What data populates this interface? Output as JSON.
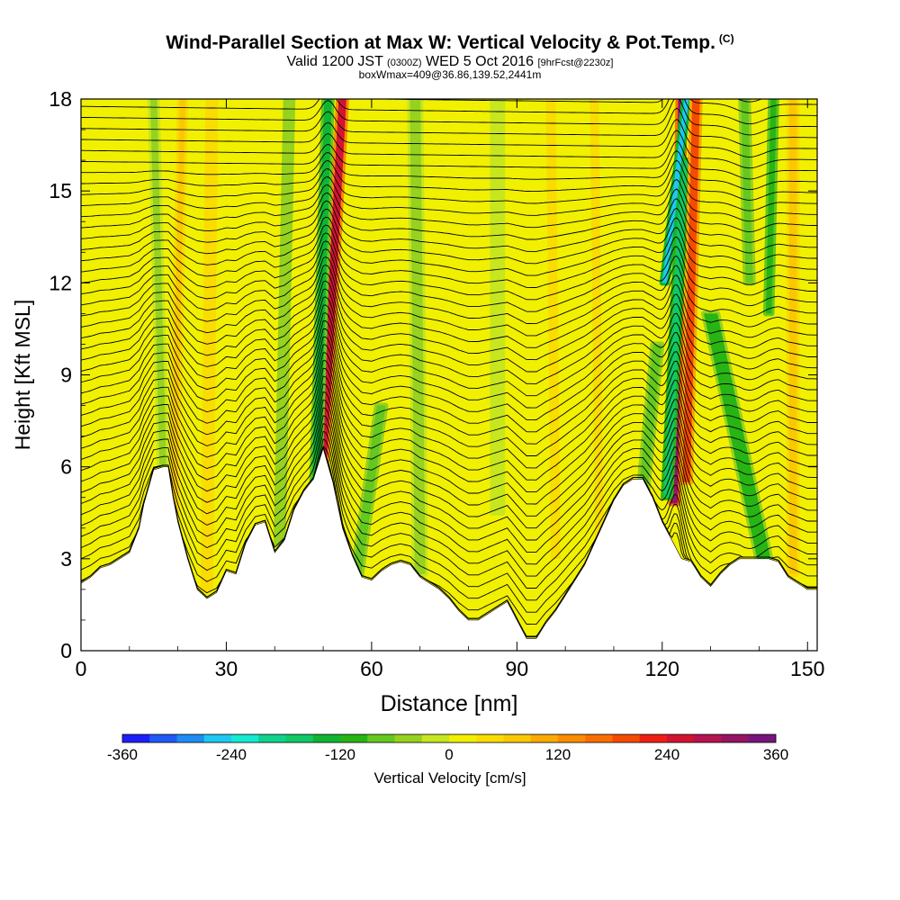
{
  "header": {
    "title": "Wind-Parallel Section at Max W: Vertical Velocity & Pot.Temp.",
    "copyright": "(C)",
    "subtitle_valid": "Valid 1200 JST",
    "subtitle_utc": "(0300Z)",
    "subtitle_date": "WED 5 Oct 2016",
    "subtitle_fcst": "[9hrFcst@2230z]",
    "subtitle_box": "boxWmax=409@36.86,139.52,2441m"
  },
  "chart_data": {
    "type": "heatmap",
    "xlabel": "Distance [nm]",
    "ylabel": "Height [Kft MSL]",
    "xlim": [
      0,
      152
    ],
    "ylim": [
      0,
      18
    ],
    "x_ticks": [
      "0",
      "30",
      "60",
      "90",
      "120",
      "150"
    ],
    "x_tick_values": [
      0,
      30,
      60,
      90,
      120,
      150
    ],
    "y_ticks": [
      "0",
      "3",
      "6",
      "9",
      "12",
      "15",
      "18"
    ],
    "y_tick_values": [
      0,
      3,
      6,
      9,
      12,
      15,
      18
    ],
    "terrain": {
      "x": [
        0,
        2,
        4,
        6,
        8,
        10,
        12,
        13,
        15,
        17,
        18,
        19,
        20,
        22,
        24,
        26,
        28,
        30,
        32,
        34,
        36,
        38,
        40,
        42,
        44,
        46,
        48,
        50,
        52,
        54,
        56,
        58,
        60,
        62,
        64,
        66,
        68,
        70,
        72,
        74,
        76,
        78,
        80,
        82,
        84,
        86,
        88,
        90,
        92,
        94,
        96,
        98,
        100,
        102,
        104,
        106,
        108,
        110,
        112,
        114,
        116,
        118,
        120,
        122,
        124,
        126,
        128,
        130,
        132,
        134,
        136,
        138,
        140,
        142,
        144,
        146,
        148,
        150,
        152
      ],
      "height": [
        2.2,
        2.4,
        2.7,
        2.8,
        3.0,
        3.2,
        4.0,
        4.8,
        5.9,
        6.0,
        6.0,
        5.0,
        4.2,
        3.0,
        2.0,
        1.7,
        1.9,
        2.6,
        2.5,
        3.5,
        4.1,
        4.2,
        3.2,
        3.6,
        4.6,
        5.2,
        5.6,
        6.6,
        5.5,
        4.0,
        3.1,
        2.4,
        2.3,
        2.6,
        2.8,
        2.9,
        2.8,
        2.4,
        2.2,
        2.0,
        1.7,
        1.3,
        1.0,
        1.0,
        1.2,
        1.4,
        1.6,
        1.0,
        0.4,
        0.4,
        0.9,
        1.3,
        1.8,
        2.3,
        2.8,
        3.5,
        4.2,
        4.9,
        5.4,
        5.6,
        5.6,
        5.0,
        4.2,
        3.6,
        3.0,
        2.9,
        2.4,
        2.1,
        2.5,
        2.8,
        3.0,
        3.0,
        3.0,
        3.0,
        2.9,
        2.4,
        2.2,
        2.0,
        2.0
      ]
    },
    "velocity_features": [
      {
        "x_base": 50,
        "x_top": 54,
        "y_from": 6.2,
        "y_to": 18,
        "width": 1.6,
        "value": 260
      },
      {
        "x_base": 48.5,
        "x_top": 51,
        "y_from": 5.5,
        "y_to": 18,
        "width": 1.6,
        "value": -130
      },
      {
        "x_base": 122.5,
        "x_top": 124,
        "y_from": 4.8,
        "y_to": 18,
        "width": 1.4,
        "value": 300
      },
      {
        "x_base": 121,
        "x_top": 124.5,
        "y_from": 5.0,
        "y_to": 16,
        "width": 1.5,
        "value": -170
      },
      {
        "x_base": 120.5,
        "x_top": 125,
        "y_from": 12,
        "y_to": 18,
        "width": 1.0,
        "value": -260
      },
      {
        "x_base": 125,
        "x_top": 127,
        "y_from": 5.5,
        "y_to": 18,
        "width": 1.6,
        "value": 190
      },
      {
        "x_base": 115,
        "x_top": 119,
        "y_from": 3.5,
        "y_to": 10,
        "width": 1.8,
        "value": -90
      },
      {
        "x_base": 141,
        "x_top": 130,
        "y_from": 3.0,
        "y_to": 11,
        "width": 2.8,
        "value": -100
      },
      {
        "x_base": 142,
        "x_top": 143,
        "y_from": 11,
        "y_to": 18,
        "width": 1.2,
        "value": -110
      },
      {
        "x_base": 138,
        "x_top": 137,
        "y_from": 12,
        "y_to": 18,
        "width": 1.5,
        "value": -80
      },
      {
        "x_base": 57,
        "x_top": 62,
        "y_from": 2.5,
        "y_to": 8,
        "width": 1.8,
        "value": -80
      },
      {
        "x_base": 19,
        "x_top": 21,
        "y_from": 3.5,
        "y_to": 18,
        "width": 1.2,
        "value": 80
      },
      {
        "x_base": 17,
        "x_top": 15,
        "y_from": 5.5,
        "y_to": 18,
        "width": 1.4,
        "value": -40
      },
      {
        "x_base": 41,
        "x_top": 43,
        "y_from": 3.5,
        "y_to": 18,
        "width": 1.4,
        "value": -60
      },
      {
        "x_base": 26,
        "x_top": 27,
        "y_from": 2.0,
        "y_to": 18,
        "width": 1.5,
        "value": 55
      },
      {
        "x_base": 98,
        "x_top": 97,
        "y_from": 3.0,
        "y_to": 18,
        "width": 2.0,
        "value": 45
      },
      {
        "x_base": 107,
        "x_top": 106,
        "y_from": 3.5,
        "y_to": 18,
        "width": 1.8,
        "value": 50
      },
      {
        "x_base": 147,
        "x_top": 147,
        "y_from": 2.5,
        "y_to": 18,
        "width": 1.6,
        "value": 60
      },
      {
        "x_base": 70,
        "x_top": 69,
        "y_from": 2.5,
        "y_to": 18,
        "width": 2.2,
        "value": -35
      },
      {
        "x_base": 86,
        "x_top": 86,
        "y_from": 4.5,
        "y_to": 18,
        "width": 2.0,
        "value": -30
      }
    ],
    "colorbar": {
      "label": "Vertical Velocity [cm/s]",
      "tick_labels": [
        "-360",
        "-240",
        "-120",
        "0",
        "120",
        "240",
        "360"
      ],
      "tick_values": [
        -360,
        -240,
        -120,
        0,
        120,
        240,
        360
      ],
      "bounds": [
        -360,
        -330,
        -300,
        -270,
        -240,
        -210,
        -180,
        -150,
        -120,
        -90,
        -60,
        -30,
        0,
        30,
        60,
        90,
        120,
        150,
        180,
        210,
        240,
        270,
        300,
        330,
        360
      ],
      "colors": [
        "#1e1efa",
        "#1e5af5",
        "#1e8cf5",
        "#1ec8f0",
        "#14ebd2",
        "#10d28c",
        "#10c864",
        "#10b432",
        "#28b414",
        "#64c81e",
        "#96d21e",
        "#c8e61e",
        "#f0f000",
        "#fadc00",
        "#fac800",
        "#faaa00",
        "#fa8c00",
        "#fa6e00",
        "#f54b00",
        "#f01e14",
        "#d21432",
        "#b41450",
        "#961464",
        "#78147d"
      ]
    }
  }
}
